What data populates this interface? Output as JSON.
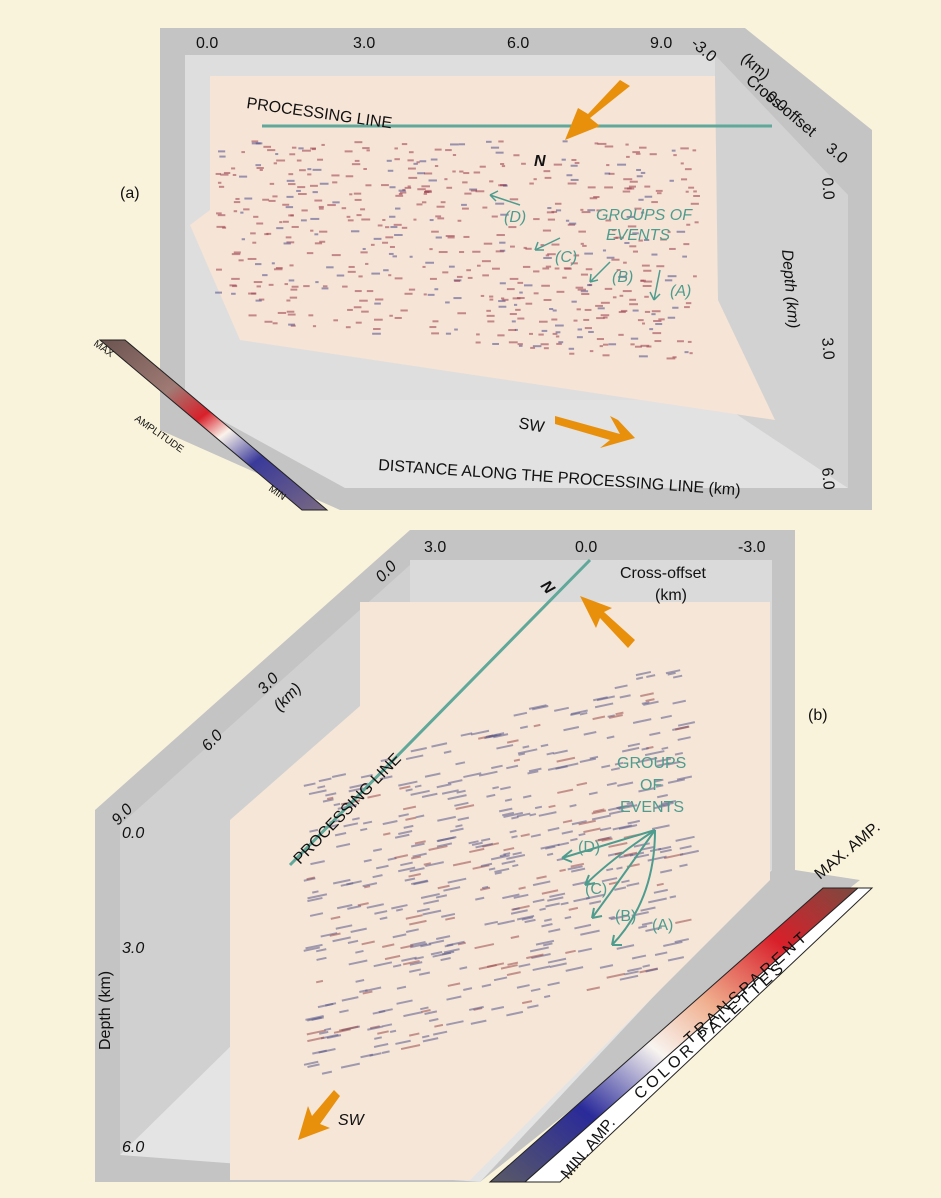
{
  "panel_a": {
    "label": "(a)",
    "distance_ticks": [
      "0.0",
      "3.0",
      "6.0",
      "9.0"
    ],
    "cross_offset_label": "Cross-offset",
    "cross_offset_unit": "(km)",
    "cross_offset_ticks": [
      "-3.0",
      "0.0",
      "3.0"
    ],
    "depth_label": "Depth (km)",
    "depth_ticks": [
      "0.0",
      "3.0",
      "6.0"
    ],
    "processing_line": "PROCESSING LINE",
    "north": "N",
    "group_label": [
      "GROUPS OF",
      "EVENTS"
    ],
    "event_labels": [
      "(D)",
      "(C)",
      "(B)",
      "(A)"
    ],
    "direction": "SW",
    "distance_label": "DISTANCE ALONG THE PROCESSING LINE (km)",
    "amplitude_scale": [
      "MAX",
      "AMPLITUDE",
      "MIN"
    ]
  },
  "panel_b": {
    "label": "(b)",
    "cross_offset_ticks": [
      "3.0",
      "0.0",
      "-3.0"
    ],
    "cross_offset_label": "Cross-offset",
    "cross_offset_unit": "(km)",
    "north": "N",
    "processing_line": "PROCESSING LINE",
    "distance_ticks": [
      "0.0",
      "3.0",
      "6.0",
      "9.0"
    ],
    "distance_unit": "(km)",
    "depth_ticks": [
      "0.0",
      "3.0",
      "6.0"
    ],
    "depth_label": "Depth (km)",
    "group_label": [
      "GROUPS",
      "OF",
      "EVENTS"
    ],
    "event_labels": [
      "(D)",
      "(C)",
      "(B)",
      "(A)"
    ],
    "direction": "SW",
    "palette_max": "MAX. AMP.",
    "transparent": "TRANSPARENT",
    "palette_label": "COLOR PALETTES",
    "palette_min": "MIN. AMP."
  }
}
